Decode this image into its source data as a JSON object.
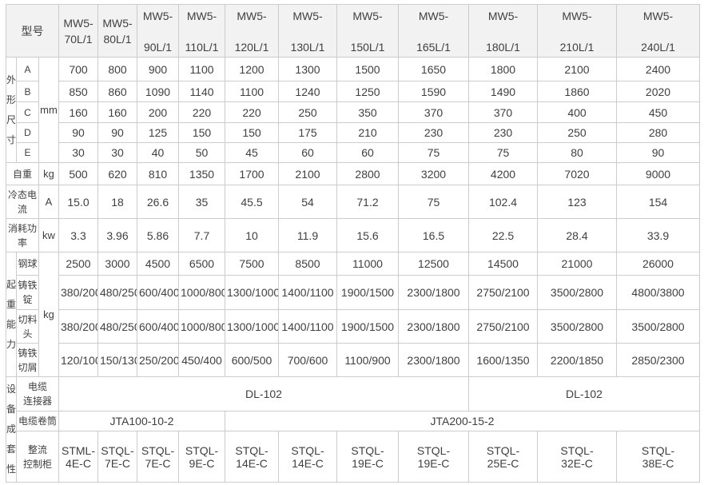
{
  "colors": {
    "header_bg": "#f2f2f2",
    "border": "#cccccc",
    "text": "#404040",
    "background": "#ffffff"
  },
  "header": {
    "corner": "型号",
    "models": [
      {
        "line1": "MW5-",
        "line2": "70L/1"
      },
      {
        "line1": "MW5-",
        "line2": "80L/1"
      },
      {
        "line1": "MW5-",
        "line2": "90L/1"
      },
      {
        "line1": "MW5-",
        "line2": "110L/1"
      },
      {
        "line1": "MW5-",
        "line2": "120L/1"
      },
      {
        "line1": "MW5-",
        "line2": "130L/1"
      },
      {
        "line1": "MW5-",
        "line2": "150L/1"
      },
      {
        "line1": "MW5-",
        "line2": "165L/1"
      },
      {
        "line1": "MW5-",
        "line2": "180L/1"
      },
      {
        "line1": "MW5-",
        "line2": "210L/1"
      },
      {
        "line1": "MW5-",
        "line2": "240L/1"
      }
    ]
  },
  "dims": {
    "label": "外形尺寸",
    "unit": "mm",
    "rows": [
      {
        "label": "A",
        "values": [
          "700",
          "800",
          "900",
          "1100",
          "1200",
          "1300",
          "1500",
          "1650",
          "1800",
          "2100",
          "2400"
        ]
      },
      {
        "label": "B",
        "values": [
          "850",
          "860",
          "1090",
          "1140",
          "1100",
          "1240",
          "1250",
          "1590",
          "1490",
          "1860",
          "2020"
        ]
      },
      {
        "label": "C",
        "values": [
          "160",
          "160",
          "200",
          "220",
          "220",
          "250",
          "350",
          "370",
          "370",
          "400",
          "450"
        ]
      },
      {
        "label": "D",
        "values": [
          "90",
          "90",
          "125",
          "150",
          "150",
          "175",
          "210",
          "230",
          "230",
          "250",
          "280"
        ]
      },
      {
        "label": "E",
        "values": [
          "30",
          "30",
          "40",
          "50",
          "45",
          "60",
          "60",
          "75",
          "75",
          "80",
          "90"
        ]
      }
    ]
  },
  "simple": [
    {
      "label": "自重",
      "unit": "kg",
      "values": [
        "500",
        "620",
        "810",
        "1350",
        "1700",
        "2100",
        "2800",
        "3200",
        "4200",
        "7020",
        "9000"
      ]
    },
    {
      "label": "冷态电\n流",
      "unit": "A",
      "values": [
        "15.0",
        "18",
        "26.6",
        "35",
        "45.5",
        "54",
        "71.2",
        "75",
        "102.4",
        "123",
        "154"
      ]
    },
    {
      "label": "消耗功\n率",
      "unit": "kw",
      "values": [
        "3.3",
        "3.96",
        "5.86",
        "7.7",
        "10",
        "11.9",
        "15.6",
        "16.5",
        "22.5",
        "28.4",
        "33.9"
      ]
    }
  ],
  "lifting": {
    "label": "起重能力",
    "unit": "kg",
    "rows": [
      {
        "label": "钢球",
        "values": [
          "2500",
          "3000",
          "4500",
          "6500",
          "7500",
          "8500",
          "11000",
          "12500",
          "14500",
          "21000",
          "26000"
        ]
      },
      {
        "label": "铸铁\n锭",
        "values": [
          "380/200",
          "480/250",
          "600/400",
          "1000/800",
          "1300/1000",
          "1400/1100",
          "1900/1500",
          "2300/1800",
          "2750/2100",
          "3500/2800",
          "4800/3800"
        ]
      },
      {
        "label": "切料\n头",
        "values": [
          "380/200",
          "480/250",
          "600/400",
          "1000/800",
          "1300/1000",
          "1400/1100",
          "1900/1500",
          "2300/1800",
          "2750/2100",
          "3500/2800",
          "3500/2800"
        ]
      },
      {
        "label": "铸铁\n切屑",
        "values": [
          "120/100",
          "150/130",
          "250/200",
          "450/400",
          "600/500",
          "700/600",
          "1100/900",
          "2300/1800",
          "1600/1350",
          "2200/1850",
          "2850/2300"
        ]
      }
    ]
  },
  "equipment": {
    "label": "设备成套性",
    "rows": [
      {
        "label": "电缆\n连接器",
        "spans": [
          {
            "cols": 8,
            "text": "DL-102"
          },
          {
            "cols": 3,
            "text": "DL-102"
          }
        ]
      },
      {
        "label": "电缆卷筒",
        "spans": [
          {
            "cols": 4,
            "text": "JTA100-10-2"
          },
          {
            "cols": 7,
            "text": "JTA200-15-2"
          }
        ]
      },
      {
        "label": "整流\n控制柜",
        "values": [
          "STML-4E-C",
          "STQL-7E-C",
          "STQL-7E-C",
          "STQL-9E-C",
          "STQL-14E-C",
          "STQL-14E-C",
          "STQL-19E-C",
          "STQL-19E-C",
          "STQL-25E-C",
          "STQL-32E-C",
          "STQL-38E-C"
        ]
      }
    ]
  }
}
